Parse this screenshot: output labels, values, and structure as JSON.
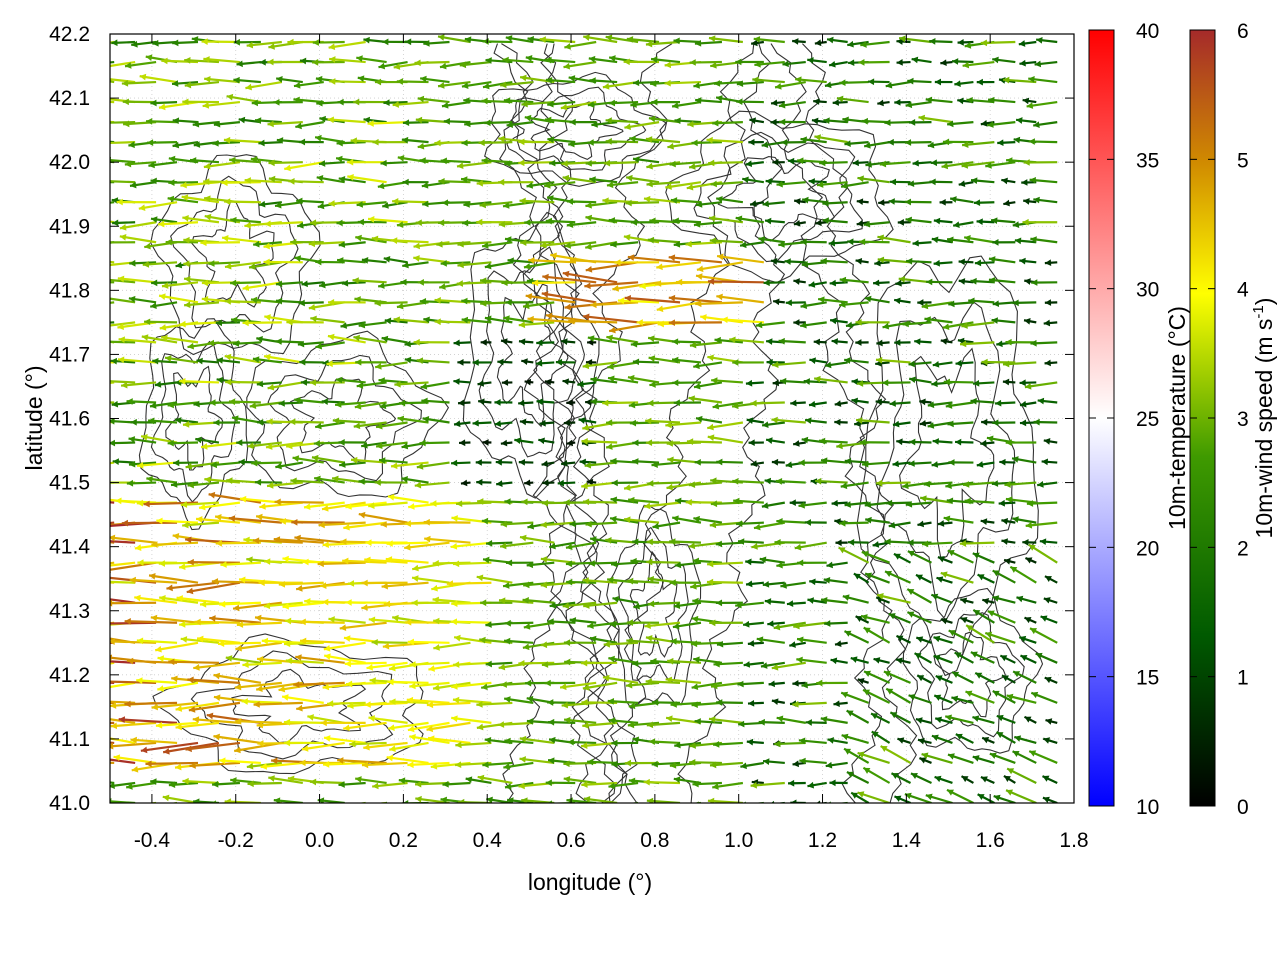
{
  "chart_data": {
    "type": "vector_field",
    "title": "",
    "xlabel": "longitude (°)",
    "ylabel": "latitude (°)",
    "xlim": [
      -0.5,
      1.8
    ],
    "ylim": [
      41.0,
      42.2
    ],
    "x_ticks": [
      "-0.4",
      "-0.2",
      "0.0",
      "0.2",
      "0.4",
      "0.6",
      "0.8",
      "1.0",
      "1.2",
      "1.4",
      "1.6",
      "1.8"
    ],
    "x_tick_values": [
      -0.4,
      -0.2,
      0.0,
      0.2,
      0.4,
      0.6,
      0.8,
      1.0,
      1.2,
      1.4,
      1.6,
      1.8
    ],
    "y_ticks": [
      "41.0",
      "41.1",
      "41.2",
      "41.3",
      "41.4",
      "41.5",
      "41.6",
      "41.7",
      "41.8",
      "41.9",
      "42.0",
      "42.1",
      "42.2"
    ],
    "y_tick_values": [
      41.0,
      41.1,
      41.2,
      41.3,
      41.4,
      41.5,
      41.6,
      41.7,
      41.8,
      41.9,
      42.0,
      42.1,
      42.2
    ],
    "grid": true,
    "contour_color": "#333333",
    "temperature_colorbar": {
      "label": "10m-temperature (°C)",
      "range": [
        10,
        40
      ],
      "ticks": [
        "10",
        "15",
        "20",
        "25",
        "30",
        "35",
        "40"
      ],
      "tick_values": [
        10,
        15,
        20,
        25,
        30,
        35,
        40
      ],
      "colors": [
        "#0000ff",
        "#ffffff",
        "#ff0000"
      ]
    },
    "wind_colorbar": {
      "label_main": "10m-wind speed (m s",
      "label_sup": "-1",
      "label_end": ")",
      "range": [
        0,
        6
      ],
      "ticks": [
        "0",
        "1",
        "2",
        "3",
        "4",
        "5",
        "6"
      ],
      "tick_values": [
        0,
        1,
        2,
        3,
        4,
        5,
        6
      ],
      "colors": [
        "#000000",
        "#005a00",
        "#3f9a00",
        "#ffff00",
        "#d08a00",
        "#a52a2a"
      ]
    },
    "wind_field": {
      "grid_lon_start": -0.49,
      "grid_lon_step": 0.05,
      "grid_lat_start": 41.0,
      "grid_lat_step": 0.05,
      "predominant_direction": "westward",
      "regions": [
        {
          "area": "west, 41.1-41.45",
          "speed_range": [
            3.5,
            6.0
          ]
        },
        {
          "area": "north of 41.5",
          "speed_range": [
            1.0,
            3.5
          ]
        },
        {
          "area": "east of 1.0",
          "speed_range": [
            0.5,
            3.0
          ]
        },
        {
          "area": "around 0.85, 41.8",
          "speed_range": [
            4.0,
            5.5
          ]
        }
      ]
    }
  }
}
